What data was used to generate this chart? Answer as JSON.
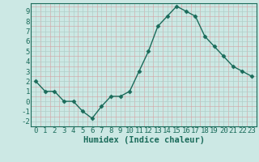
{
  "x": [
    0,
    1,
    2,
    3,
    4,
    5,
    6,
    7,
    8,
    9,
    10,
    11,
    12,
    13,
    14,
    15,
    16,
    17,
    18,
    19,
    20,
    21,
    22,
    23
  ],
  "y": [
    2,
    1,
    1,
    0,
    0,
    -1,
    -1.7,
    -0.5,
    0.5,
    0.5,
    1,
    3,
    5,
    7.5,
    8.5,
    9.5,
    9,
    8.5,
    6.5,
    5.5,
    4.5,
    3.5,
    3,
    2.5
  ],
  "line_color": "#1a6b5a",
  "marker": "D",
  "bg_color": "#cce8e4",
  "grid_color_major": "#b0cec8",
  "grid_color_minor": "#d4a0a0",
  "xlabel": "Humidex (Indice chaleur)",
  "xlim": [
    -0.5,
    23.5
  ],
  "ylim": [
    -2.5,
    9.8
  ],
  "yticks": [
    -2,
    -1,
    0,
    1,
    2,
    3,
    4,
    5,
    6,
    7,
    8,
    9
  ],
  "xticks": [
    0,
    1,
    2,
    3,
    4,
    5,
    6,
    7,
    8,
    9,
    10,
    11,
    12,
    13,
    14,
    15,
    16,
    17,
    18,
    19,
    20,
    21,
    22,
    23
  ],
  "xlabel_fontsize": 7.5,
  "tick_fontsize": 6.5,
  "line_width": 1.0,
  "marker_size": 2.5
}
